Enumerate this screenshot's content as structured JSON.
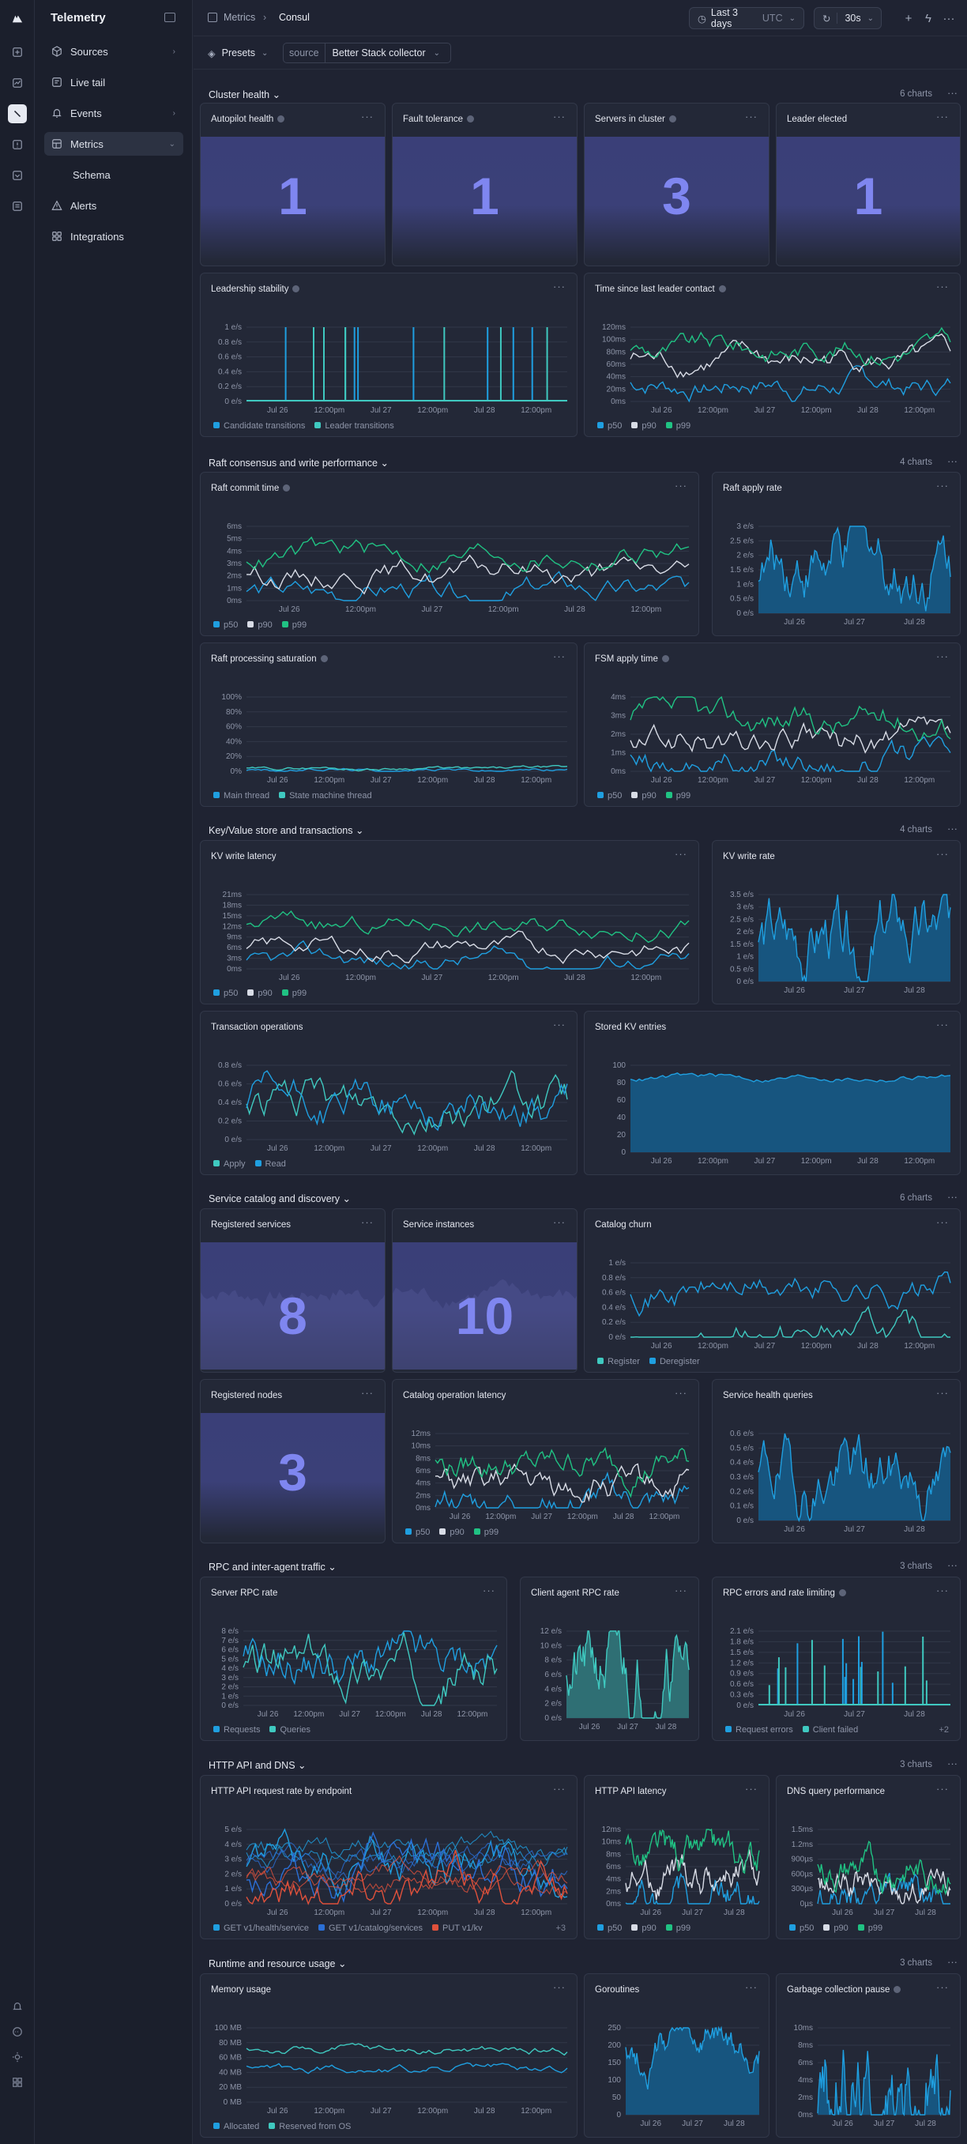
{
  "app": {
    "title": "Telemetry"
  },
  "sidebar": {
    "items": [
      {
        "label": "Sources",
        "icon": "box-icon",
        "chevron": "›"
      },
      {
        "label": "Live tail",
        "icon": "document-icon",
        "chevron": ""
      },
      {
        "label": "Events",
        "icon": "bell-icon",
        "chevron": "›"
      },
      {
        "label": "Metrics",
        "icon": "dashboard-icon",
        "chevron": "⌄"
      },
      {
        "label": "Schema",
        "icon": "",
        "chevron": ""
      },
      {
        "label": "Alerts",
        "icon": "warning-icon",
        "chevron": ""
      },
      {
        "label": "Integrations",
        "icon": "grid-icon",
        "chevron": ""
      }
    ]
  },
  "header": {
    "crumb_parent": "Metrics",
    "crumb_current": "Consul",
    "time_range": "Last 3 days",
    "timezone": "UTC",
    "refresh": "30s"
  },
  "filters": {
    "presets_label": "Presets",
    "source_key": "source",
    "source_value": "Better Stack collector"
  },
  "sections": [
    {
      "title": "Cluster health",
      "count": "6 charts"
    },
    {
      "title": "Raft consensus and write performance",
      "count": "4 charts"
    },
    {
      "title": "Key/Value store and transactions",
      "count": "4 charts"
    },
    {
      "title": "Service catalog and discovery",
      "count": "6 charts"
    },
    {
      "title": "RPC and inter-agent traffic",
      "count": "3 charts"
    },
    {
      "title": "HTTP API and DNS",
      "count": "3 charts"
    },
    {
      "title": "Runtime and resource usage",
      "count": "3 charts"
    }
  ],
  "stats": [
    {
      "title": "Autopilot health",
      "value": "1"
    },
    {
      "title": "Fault tolerance",
      "value": "1"
    },
    {
      "title": "Servers in cluster",
      "value": "3"
    },
    {
      "title": "Leader elected",
      "value": "1"
    },
    {
      "title": "Registered services",
      "value": "8"
    },
    {
      "title": "Service instances",
      "value": "10"
    },
    {
      "title": "Registered nodes",
      "value": "3"
    }
  ],
  "colors": {
    "blue": "#1f9fe0",
    "teal": "#3fc9c0",
    "green": "#20c283",
    "white": "#d8dce6",
    "red": "#e0513b",
    "indigo": "#7f86f0"
  },
  "chart_data": [
    {
      "id": "leadership",
      "title": "Leadership stability",
      "type": "bar",
      "yticks": [
        "1 e/s",
        "0.8 e/s",
        "0.6 e/s",
        "0.4 e/s",
        "0.2 e/s",
        "0 e/s"
      ],
      "xticks": [
        "Jul 26",
        "12:00pm",
        "Jul 27",
        "12:00pm",
        "Jul 28",
        "12:00pm"
      ],
      "series": [
        {
          "name": "Candidate transitions",
          "color": "#1f9fe0"
        },
        {
          "name": "Leader transitions",
          "color": "#3fc9c0"
        }
      ]
    },
    {
      "id": "leadercontact",
      "title": "Time since last leader contact",
      "type": "line",
      "yticks": [
        "120ms",
        "100ms",
        "80ms",
        "60ms",
        "40ms",
        "20ms",
        "0ms"
      ],
      "xticks": [
        "Jul 26",
        "12:00pm",
        "Jul 27",
        "12:00pm",
        "Jul 28",
        "12:00pm"
      ],
      "series": [
        {
          "name": "p50",
          "color": "#1f9fe0"
        },
        {
          "name": "p90",
          "color": "#d8dce6"
        },
        {
          "name": "p99",
          "color": "#20c283"
        }
      ]
    },
    {
      "id": "raftcommit",
      "title": "Raft commit time",
      "type": "line",
      "yticks": [
        "6ms",
        "5ms",
        "4ms",
        "3ms",
        "2ms",
        "1ms",
        "0ms"
      ],
      "xticks": [
        "Jul 26",
        "12:00pm",
        "Jul 27",
        "12:00pm",
        "Jul 28",
        "12:00pm"
      ],
      "series": [
        {
          "name": "p50",
          "color": "#1f9fe0"
        },
        {
          "name": "p90",
          "color": "#d8dce6"
        },
        {
          "name": "p99",
          "color": "#20c283"
        }
      ]
    },
    {
      "id": "raftapply",
      "title": "Raft apply rate",
      "type": "area",
      "yticks": [
        "3 e/s",
        "2.5 e/s",
        "2 e/s",
        "1.5 e/s",
        "1 e/s",
        "0.5 e/s",
        "0 e/s"
      ],
      "xticks": [
        "Jul 26",
        "Jul 27",
        "Jul 28"
      ]
    },
    {
      "id": "raftsat",
      "title": "Raft processing saturation",
      "type": "line",
      "yticks": [
        "100%",
        "80%",
        "60%",
        "40%",
        "20%",
        "0%"
      ],
      "xticks": [
        "Jul 26",
        "12:00pm",
        "Jul 27",
        "12:00pm",
        "Jul 28",
        "12:00pm"
      ],
      "series": [
        {
          "name": "Main thread",
          "color": "#1f9fe0"
        },
        {
          "name": "State machine thread",
          "color": "#3fc9c0"
        }
      ]
    },
    {
      "id": "fsmapply",
      "title": "FSM apply time",
      "type": "line",
      "yticks": [
        "4ms",
        "3ms",
        "2ms",
        "1ms",
        "0ms"
      ],
      "xticks": [
        "Jul 26",
        "12:00pm",
        "Jul 27",
        "12:00pm",
        "Jul 28",
        "12:00pm"
      ],
      "series": [
        {
          "name": "p50",
          "color": "#1f9fe0"
        },
        {
          "name": "p90",
          "color": "#d8dce6"
        },
        {
          "name": "p99",
          "color": "#20c283"
        }
      ]
    },
    {
      "id": "kvlat",
      "title": "KV write latency",
      "type": "line",
      "yticks": [
        "21ms",
        "18ms",
        "15ms",
        "12ms",
        "9ms",
        "6ms",
        "3ms",
        "0ms"
      ],
      "xticks": [
        "Jul 26",
        "12:00pm",
        "Jul 27",
        "12:00pm",
        "Jul 28",
        "12:00pm"
      ],
      "series": [
        {
          "name": "p50",
          "color": "#1f9fe0"
        },
        {
          "name": "p90",
          "color": "#d8dce6"
        },
        {
          "name": "p99",
          "color": "#20c283"
        }
      ]
    },
    {
      "id": "kvrate",
      "title": "KV write rate",
      "type": "area",
      "yticks": [
        "3.5 e/s",
        "3 e/s",
        "2.5 e/s",
        "2 e/s",
        "1.5 e/s",
        "1 e/s",
        "0.5 e/s",
        "0 e/s"
      ],
      "xticks": [
        "Jul 26",
        "Jul 27",
        "Jul 28"
      ]
    },
    {
      "id": "txn",
      "title": "Transaction operations",
      "type": "line",
      "yticks": [
        "0.8 e/s",
        "0.6 e/s",
        "0.4 e/s",
        "0.2 e/s",
        "0 e/s"
      ],
      "xticks": [
        "Jul 26",
        "12:00pm",
        "Jul 27",
        "12:00pm",
        "Jul 28",
        "12:00pm"
      ],
      "series": [
        {
          "name": "Apply",
          "color": "#3fc9c0"
        },
        {
          "name": "Read",
          "color": "#1f9fe0"
        }
      ]
    },
    {
      "id": "kventries",
      "title": "Stored KV entries",
      "type": "area",
      "yticks": [
        "100",
        "80",
        "60",
        "40",
        "20",
        "0"
      ],
      "xticks": [
        "Jul 26",
        "12:00pm",
        "Jul 27",
        "12:00pm",
        "Jul 28",
        "12:00pm"
      ]
    },
    {
      "id": "churn",
      "title": "Catalog churn",
      "type": "line",
      "yticks": [
        "1 e/s",
        "0.8 e/s",
        "0.6 e/s",
        "0.4 e/s",
        "0.2 e/s",
        "0 e/s"
      ],
      "xticks": [
        "Jul 26",
        "12:00pm",
        "Jul 27",
        "12:00pm",
        "Jul 28",
        "12:00pm"
      ],
      "series": [
        {
          "name": "Register",
          "color": "#3fc9c0"
        },
        {
          "name": "Deregister",
          "color": "#1f9fe0"
        }
      ]
    },
    {
      "id": "catlat",
      "title": "Catalog operation latency",
      "type": "line",
      "yticks": [
        "12ms",
        "10ms",
        "8ms",
        "6ms",
        "4ms",
        "2ms",
        "0ms"
      ],
      "xticks": [
        "Jul 26",
        "12:00pm",
        "Jul 27",
        "12:00pm",
        "Jul 28",
        "12:00pm"
      ],
      "series": [
        {
          "name": "p50",
          "color": "#1f9fe0"
        },
        {
          "name": "p90",
          "color": "#d8dce6"
        },
        {
          "name": "p99",
          "color": "#20c283"
        }
      ]
    },
    {
      "id": "healthq",
      "title": "Service health queries",
      "type": "area",
      "yticks": [
        "0.6 e/s",
        "0.5 e/s",
        "0.4 e/s",
        "0.3 e/s",
        "0.2 e/s",
        "0.1 e/s",
        "0 e/s"
      ],
      "xticks": [
        "Jul 26",
        "Jul 27",
        "Jul 28"
      ]
    },
    {
      "id": "serverrpc",
      "title": "Server RPC rate",
      "type": "line",
      "yticks": [
        "8 e/s",
        "7 e/s",
        "6 e/s",
        "5 e/s",
        "4 e/s",
        "3 e/s",
        "2 e/s",
        "1 e/s",
        "0 e/s"
      ],
      "xticks": [
        "Jul 26",
        "12:00pm",
        "Jul 27",
        "12:00pm",
        "Jul 28",
        "12:00pm"
      ],
      "series": [
        {
          "name": "Requests",
          "color": "#1f9fe0"
        },
        {
          "name": "Queries",
          "color": "#3fc9c0"
        }
      ]
    },
    {
      "id": "clientrpc",
      "title": "Client agent RPC rate",
      "type": "area",
      "yticks": [
        "12 e/s",
        "10 e/s",
        "8 e/s",
        "6 e/s",
        "4 e/s",
        "2 e/s",
        "0 e/s"
      ],
      "xticks": [
        "Jul 26",
        "Jul 27",
        "Jul 28"
      ]
    },
    {
      "id": "rpcerr",
      "title": "RPC errors and rate limiting",
      "type": "bar",
      "yticks": [
        "2.1 e/s",
        "1.8 e/s",
        "1.5 e/s",
        "1.2 e/s",
        "0.9 e/s",
        "0.6 e/s",
        "0.3 e/s",
        "0 e/s"
      ],
      "xticks": [
        "Jul 26",
        "Jul 27",
        "Jul 28"
      ],
      "series": [
        {
          "name": "Request errors",
          "color": "#1f9fe0"
        },
        {
          "name": "Client failed",
          "color": "#3fc9c0"
        }
      ],
      "more": "+2"
    },
    {
      "id": "httprate",
      "title": "HTTP API request rate by endpoint",
      "type": "line",
      "yticks": [
        "5 e/s",
        "4 e/s",
        "3 e/s",
        "2 e/s",
        "1 e/s",
        "0 e/s"
      ],
      "xticks": [
        "Jul 26",
        "12:00pm",
        "Jul 27",
        "12:00pm",
        "Jul 28",
        "12:00pm"
      ],
      "series": [
        {
          "name": "GET v1/health/service",
          "color": "#1f9fe0"
        },
        {
          "name": "GET v1/catalog/services",
          "color": "#2b6fd6"
        },
        {
          "name": "PUT v1/kv",
          "color": "#e0513b"
        }
      ],
      "more": "+3"
    },
    {
      "id": "httplat",
      "title": "HTTP API latency",
      "type": "line",
      "yticks": [
        "12ms",
        "10ms",
        "8ms",
        "6ms",
        "4ms",
        "2ms",
        "0ms"
      ],
      "xticks": [
        "Jul 26",
        "Jul 27",
        "Jul 28"
      ],
      "series": [
        {
          "name": "p50",
          "color": "#1f9fe0"
        },
        {
          "name": "p90",
          "color": "#d8dce6"
        },
        {
          "name": "p99",
          "color": "#20c283"
        }
      ]
    },
    {
      "id": "dns",
      "title": "DNS query performance",
      "type": "line",
      "yticks": [
        "1.5ms",
        "1.2ms",
        "900µs",
        "600µs",
        "300µs",
        "0µs"
      ],
      "xticks": [
        "Jul 26",
        "Jul 27",
        "Jul 28"
      ],
      "series": [
        {
          "name": "p50",
          "color": "#1f9fe0"
        },
        {
          "name": "p90",
          "color": "#d8dce6"
        },
        {
          "name": "p99",
          "color": "#20c283"
        }
      ]
    },
    {
      "id": "memory",
      "title": "Memory usage",
      "type": "line",
      "yticks": [
        "100 MB",
        "80 MB",
        "60 MB",
        "40 MB",
        "20 MB",
        "0 MB"
      ],
      "xticks": [
        "Jul 26",
        "12:00pm",
        "Jul 27",
        "12:00pm",
        "Jul 28",
        "12:00pm"
      ],
      "series": [
        {
          "name": "Allocated",
          "color": "#1f9fe0"
        },
        {
          "name": "Reserved from OS",
          "color": "#3fc9c0"
        }
      ]
    },
    {
      "id": "goroutines",
      "title": "Goroutines",
      "type": "area",
      "yticks": [
        "250",
        "200",
        "150",
        "100",
        "50",
        "0"
      ],
      "xticks": [
        "Jul 26",
        "Jul 27",
        "Jul 28"
      ]
    },
    {
      "id": "gcpause",
      "title": "Garbage collection pause",
      "type": "area",
      "yticks": [
        "10ms",
        "8ms",
        "6ms",
        "4ms",
        "2ms",
        "0ms"
      ],
      "xticks": [
        "Jul 26",
        "Jul 27",
        "Jul 28"
      ]
    }
  ]
}
